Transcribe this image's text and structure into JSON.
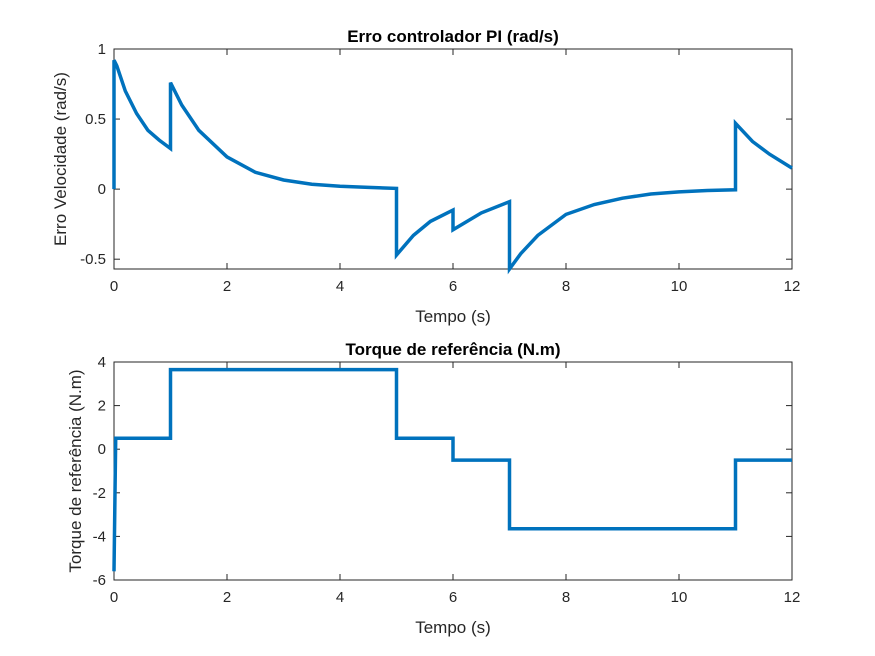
{
  "chart_data": [
    {
      "type": "line",
      "title": "Erro controlador PI (rad/s)",
      "xlabel": "Tempo (s)",
      "ylabel": "Erro Velocidade (rad/s)",
      "xlim": [
        0,
        12
      ],
      "ylim": [
        -0.57,
        1.0
      ],
      "xticks": [
        0,
        2,
        4,
        6,
        8,
        10,
        12
      ],
      "yticks": [
        -0.5,
        0,
        0.5,
        1
      ],
      "xtick_labels": [
        "0",
        "2",
        "4",
        "6",
        "8",
        "10",
        "12"
      ],
      "ytick_labels": [
        "-0.5",
        "0",
        "0.5",
        "1"
      ],
      "grid": false,
      "line_color": "#0072BD",
      "series": [
        {
          "x": [
            0,
            0,
            0.05,
            0.2,
            0.4,
            0.6,
            0.8,
            1.0,
            1.0,
            1.2,
            1.5,
            2.0,
            2.5,
            3.0,
            3.5,
            4.0,
            4.5,
            5.0,
            5.0,
            5.3,
            5.6,
            6.0,
            6.0,
            6.5,
            7.0,
            7.0,
            7.2,
            7.5,
            8.0,
            8.5,
            9.0,
            9.5,
            10.0,
            10.5,
            11.0,
            11.0,
            11.3,
            11.6,
            12.0
          ],
          "y": [
            0,
            0.92,
            0.88,
            0.7,
            0.54,
            0.42,
            0.35,
            0.29,
            0.76,
            0.6,
            0.42,
            0.23,
            0.12,
            0.065,
            0.035,
            0.02,
            0.012,
            0.005,
            -0.47,
            -0.33,
            -0.23,
            -0.15,
            -0.29,
            -0.17,
            -0.09,
            -0.57,
            -0.46,
            -0.33,
            -0.18,
            -0.11,
            -0.065,
            -0.035,
            -0.02,
            -0.01,
            -0.005,
            0.47,
            0.34,
            0.25,
            0.15
          ]
        }
      ]
    },
    {
      "type": "line",
      "title": "Torque de referência (N.m)",
      "xlabel": "Tempo (s)",
      "ylabel": "Torque de referência (N.m)",
      "xlim": [
        0,
        12
      ],
      "ylim": [
        -6,
        4
      ],
      "xticks": [
        0,
        2,
        4,
        6,
        8,
        10,
        12
      ],
      "yticks": [
        -6,
        -4,
        -2,
        0,
        2,
        4
      ],
      "xtick_labels": [
        "0",
        "2",
        "4",
        "6",
        "8",
        "10",
        "12"
      ],
      "ytick_labels": [
        "-6",
        "-4",
        "-2",
        "0",
        "2",
        "4"
      ],
      "grid": false,
      "line_color": "#0072BD",
      "series": [
        {
          "x": [
            0,
            0.03,
            0.03,
            1.0,
            1.0,
            5.0,
            5.0,
            6.0,
            6.0,
            7.0,
            7.0,
            11.0,
            11.0,
            12.0
          ],
          "y": [
            -5.6,
            0.5,
            0.5,
            0.5,
            3.65,
            3.65,
            0.5,
            0.5,
            -0.5,
            -0.5,
            -3.65,
            -3.65,
            -0.5,
            -0.5
          ]
        }
      ]
    }
  ]
}
